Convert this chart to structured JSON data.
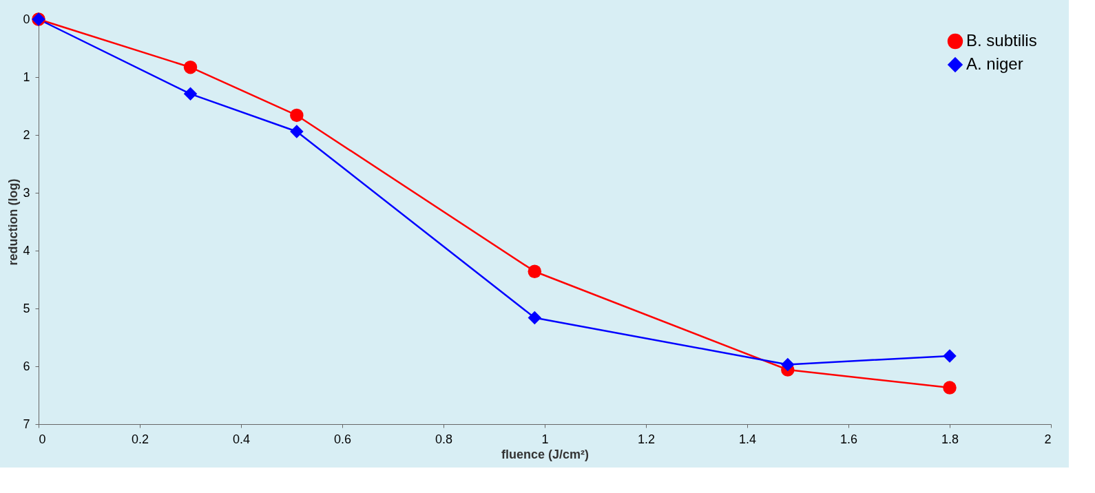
{
  "chart_data": {
    "type": "line",
    "xlabel": "fluence (J/cm²)",
    "ylabel": "reduction (log)",
    "xlim": [
      0,
      2
    ],
    "xticks": [
      0,
      0.2,
      0.4,
      0.6,
      0.8,
      1,
      1.2,
      1.4,
      1.6,
      1.8,
      2
    ],
    "ylim": [
      7,
      0
    ],
    "yticks": [
      0,
      1,
      2,
      3,
      4,
      5,
      6,
      7
    ],
    "x": [
      0,
      0.3,
      0.51,
      0.98,
      1.48,
      1.8
    ],
    "series": [
      {
        "name": "B. subtilis",
        "color": "#ff0000",
        "marker": "circle",
        "values": [
          0,
          0.83,
          1.66,
          4.36,
          6.06,
          6.37
        ]
      },
      {
        "name": "A. niger",
        "color": "#0000ff",
        "marker": "diamond",
        "values": [
          0,
          1.29,
          1.94,
          5.16,
          5.97,
          5.82
        ]
      }
    ],
    "legend": "top right",
    "grid": false,
    "line_style": "solid"
  }
}
